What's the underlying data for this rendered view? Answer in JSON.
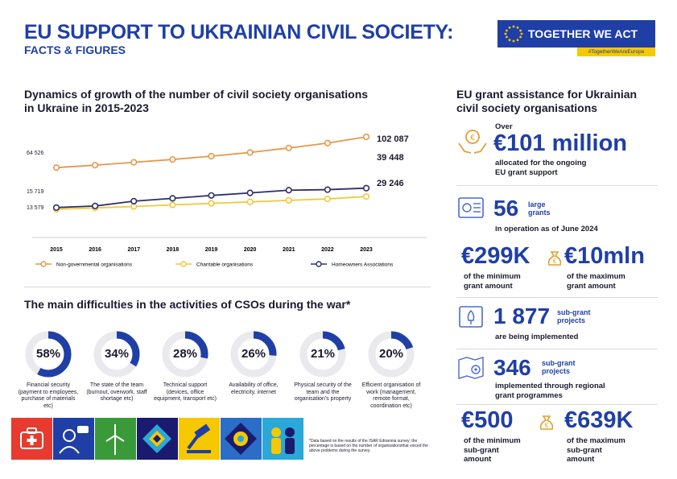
{
  "header": {
    "title": "EU SUPPORT TO UKRAINIAN CIVIL SOCIETY:",
    "subtitle": "FACTS & FIGURES",
    "badge": "TOGETHER WE ACT",
    "hashtag": "#TogetherWeAreEurope"
  },
  "growth": {
    "heading_line1": "Dynamics of growth of the number of civil society organisations",
    "heading_line2": "in Ukraine in 2015-2023"
  },
  "chart_data": {
    "type": "line",
    "x": [
      "2015",
      "2016",
      "2017",
      "2018",
      "2019",
      "2020",
      "2021",
      "2022",
      "2023"
    ],
    "series": [
      {
        "name": "Non-governmental organisations",
        "color": "#e8974a",
        "values": [
          64526,
          67500,
          71000,
          74500,
          78500,
          83000,
          88500,
          94500,
          102087
        ]
      },
      {
        "name": "Charitable organisations",
        "color": "#f0c93c",
        "values": [
          13579,
          15300,
          17000,
          19000,
          20800,
          22600,
          24500,
          26300,
          29246
        ]
      },
      {
        "name": "Homeowners Associations",
        "color": "#2c2e6e",
        "values": [
          15719,
          17600,
          23500,
          27000,
          30500,
          33600,
          36900,
          37600,
          39448
        ]
      }
    ],
    "value_labels": {
      "ngo_start": "64 526",
      "ngo_end": "102 087",
      "hoa_start": "15 719",
      "hoa_end": "39 448",
      "char_start": "13 579",
      "char_end": "29 246"
    }
  },
  "difficulties": {
    "heading": "The main difficulties in the activities of CSOs during the war*",
    "items": [
      {
        "pct": "58%",
        "value": 58,
        "label": "Financial security (payment to employees, purchase of materials etc)"
      },
      {
        "pct": "34%",
        "value": 34,
        "label": "The state of the team (burnout, overwork, staff shortage etc)"
      },
      {
        "pct": "28%",
        "value": 28,
        "label": "Technical support (devices, office equipment, transport etc)"
      },
      {
        "pct": "26%",
        "value": 26,
        "label": "Availability of office, electricity, internet"
      },
      {
        "pct": "21%",
        "value": 21,
        "label": "Physical security of the team and the organisation's property"
      },
      {
        "pct": "20%",
        "value": 20,
        "label": "Efficient organisation of work (management, remote format, coordination etc)"
      }
    ],
    "footnote": "*Data based on the results of the ISAR Ednannia survey; the percentage is based on the number of organisationsthat voiced the above problems during the survey."
  },
  "grants": {
    "heading_line1": "EU grant assistance for Ukrainian",
    "heading_line2": "civil society organisations",
    "over": "Over",
    "total": "€101 million",
    "total_note1": "allocated for the ongoing",
    "total_note2": "EU grant support",
    "large_count": "56",
    "large_unit1": "large",
    "large_unit2": "grants",
    "large_note": "in operation as of June 2024",
    "min_grant": "€299K",
    "min_grant_note1": "of the minimum",
    "min_grant_note2": "grant amount",
    "max_grant": "€10mln",
    "max_grant_note1": "of the maximum",
    "max_grant_note2": "grant amount",
    "sub_count": "1 877",
    "sub_unit1": "sub-grant",
    "sub_unit2": "projects",
    "sub_note": "are being implemented",
    "regional_count": "346",
    "regional_unit1": "sub-grant",
    "regional_unit2": "projects",
    "regional_note1": "implemented through regional",
    "regional_note2": "grant programmes",
    "min_sub": "€500",
    "min_sub_note1": "of the minimum",
    "min_sub_note2": "sub-grant",
    "min_sub_note3": "amount",
    "max_sub": "€639K",
    "max_sub_note1": "of the maximum",
    "max_sub_note2": "sub-grant",
    "max_sub_note3": "amount"
  },
  "colors": {
    "brand_blue": "#1f3fa6",
    "yellow": "#f5c800",
    "donut_track": "#e9e9ee"
  }
}
